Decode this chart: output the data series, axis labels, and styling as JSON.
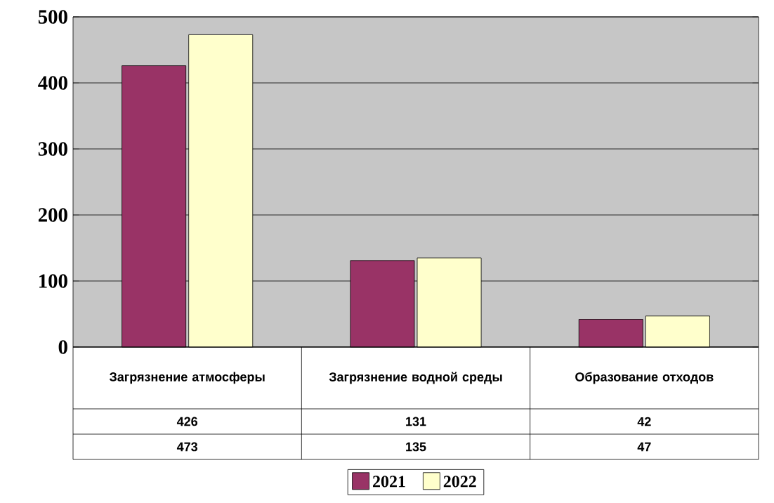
{
  "chart_data": {
    "type": "bar",
    "categories": [
      "Загрязнение атмосферы",
      "Загрязнение водной среды",
      "Образование отходов"
    ],
    "series": [
      {
        "name": "2021",
        "color": "#993366",
        "values": [
          426,
          131,
          42
        ]
      },
      {
        "name": "2022",
        "color": "#ffffcc",
        "values": [
          473,
          135,
          47
        ]
      }
    ],
    "ylim": [
      0,
      500
    ],
    "yticks": [
      0,
      100,
      200,
      300,
      400,
      500
    ],
    "grid": "y",
    "legend": "bottom",
    "data_labels": true
  }
}
